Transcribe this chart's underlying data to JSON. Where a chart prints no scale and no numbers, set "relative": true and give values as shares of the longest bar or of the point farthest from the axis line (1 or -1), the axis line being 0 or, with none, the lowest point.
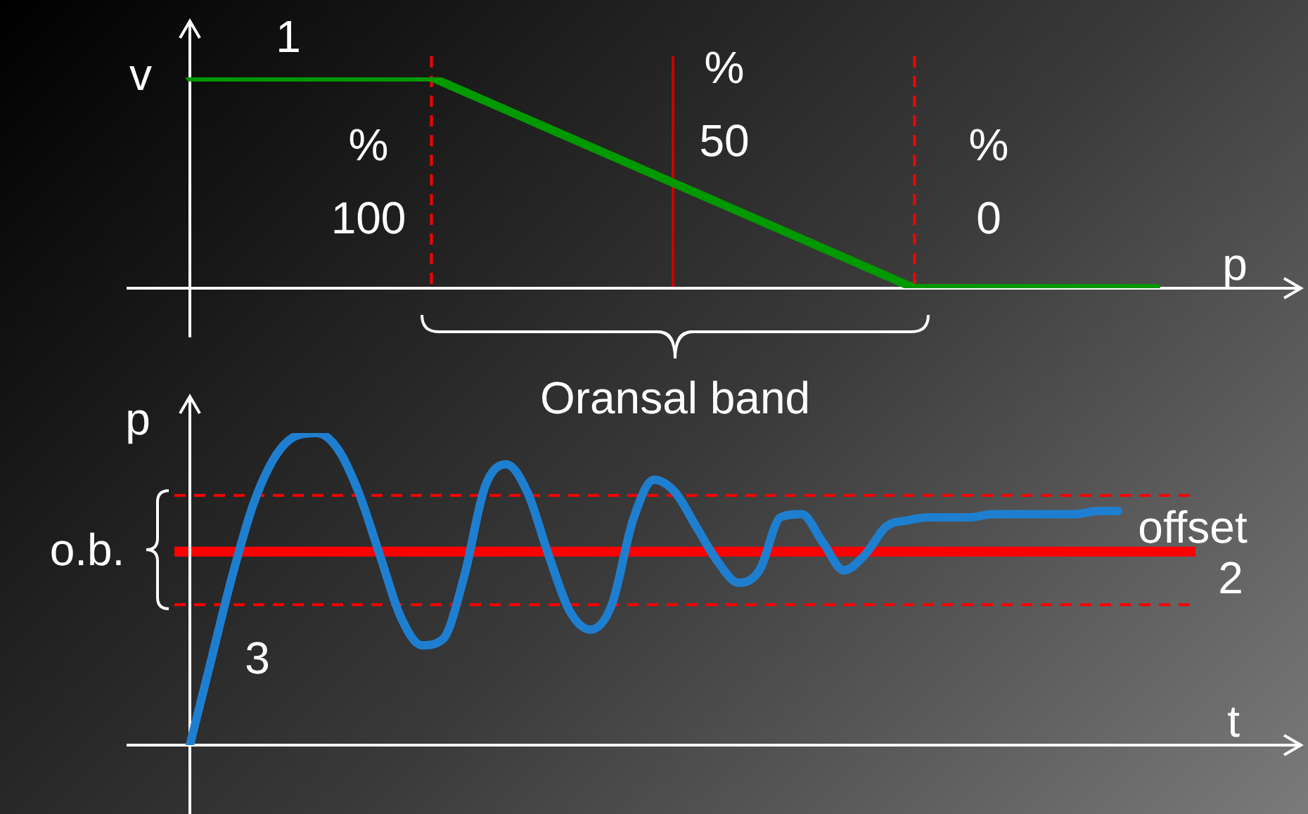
{
  "chart_data": [
    {
      "type": "line",
      "relative": true,
      "ylabel": "v",
      "xlabel": "p",
      "categories": [
        null,
        null,
        null,
        null,
        null
      ],
      "grid": false,
      "legend": false,
      "marker": "none",
      "line_style": "solid",
      "series": [
        {
          "color": "#009900",
          "values": [
            1,
            1,
            0.5,
            0,
            0
          ]
        }
      ],
      "annotations": [
        "1",
        "%\n100",
        "%\n50",
        "%\n0",
        "Oransal band"
      ]
    },
    {
      "type": "line",
      "relative": true,
      "ylabel": "p",
      "xlabel": "t",
      "categories": [
        null,
        null,
        null,
        null,
        null,
        null,
        null,
        null,
        null,
        null,
        null,
        null,
        null,
        null,
        null,
        null,
        null,
        null,
        null,
        null,
        null,
        null,
        null,
        null,
        null,
        null,
        null,
        null,
        null,
        null,
        null,
        null,
        null,
        null,
        null,
        null,
        null,
        null,
        null,
        null,
        null,
        null,
        null,
        null,
        null
      ],
      "grid": false,
      "legend": false,
      "marker": "none",
      "line_style": "solid",
      "series": [
        {
          "color": "#1e7fd0",
          "values": [
            0,
            0.27,
            0.54,
            0.77,
            0.92,
            0.99,
            1,
            0.95,
            0.81,
            0.61,
            0.41,
            0.32,
            0.34,
            0.54,
            0.83,
            0.9,
            0.81,
            0.61,
            0.43,
            0.37,
            0.45,
            0.72,
            0.85,
            0.81,
            0.7,
            0.59,
            0.52,
            0.56,
            0.73,
            0.74,
            0.65,
            0.56,
            0.61,
            0.7,
            0.72,
            0.73,
            0.73,
            0.73,
            0.74,
            0.74,
            0.74,
            0.74,
            0.74,
            0.75,
            0.75
          ]
        }
      ],
      "ref_lines": [
        {
          "axis": "y",
          "value": 0.62,
          "color": "#ff0000",
          "line_style": "solid"
        },
        {
          "axis": "y",
          "value": 0.8,
          "color": "#ff0000",
          "line_style": "dashed"
        },
        {
          "axis": "y",
          "value": 0.45,
          "color": "#ff0000",
          "line_style": "dashed"
        }
      ],
      "annotations": [
        "o.b.",
        "offset",
        "3",
        "2"
      ]
    }
  ]
}
